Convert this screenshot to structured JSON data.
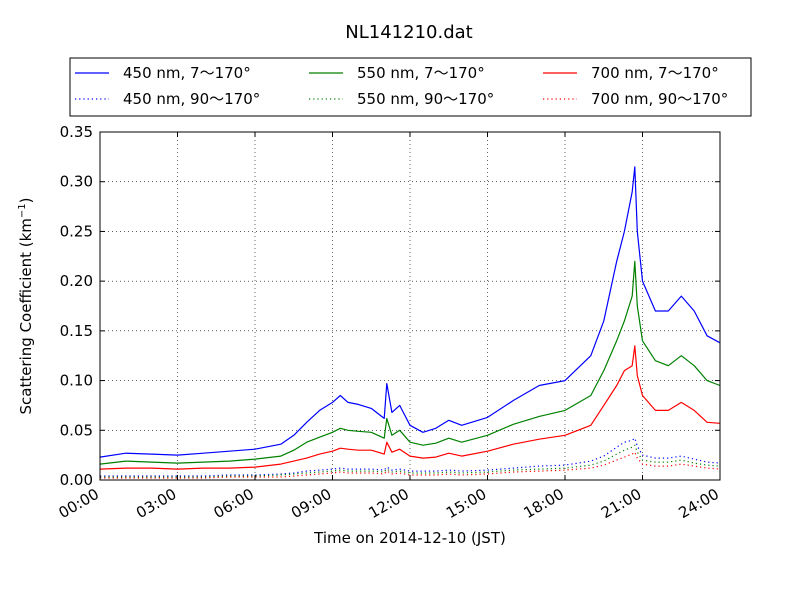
{
  "chart_data": {
    "type": "line",
    "title": "NL141210.dat",
    "xlabel": "Time on 2014-12-10 (JST)",
    "ylabel": "Scattering Coefficient (km",
    "ylabel_sup": "−1",
    "ylabel_close": ")",
    "xlim": [
      0,
      24
    ],
    "ylim": [
      0,
      0.35
    ],
    "grid": true,
    "legend_position": "top",
    "x_ticks": [
      0,
      3,
      6,
      9,
      12,
      15,
      18,
      21,
      24
    ],
    "x_tick_labels": [
      "00:00",
      "03:00",
      "06:00",
      "09:00",
      "12:00",
      "15:00",
      "18:00",
      "21:00",
      "24:00"
    ],
    "y_ticks": [
      0,
      0.05,
      0.1,
      0.15,
      0.2,
      0.25,
      0.3,
      0.35
    ],
    "y_tick_labels": [
      "0.00",
      "0.05",
      "0.10",
      "0.15",
      "0.20",
      "0.25",
      "0.30",
      "0.35"
    ],
    "x": [
      0,
      1,
      2,
      3,
      4,
      5,
      6,
      7,
      7.5,
      8,
      8.5,
      9,
      9.3,
      9.6,
      10,
      10.5,
      11,
      11.1,
      11.3,
      11.6,
      12,
      12.5,
      13,
      13.5,
      14,
      15,
      16,
      17,
      18,
      19,
      19.5,
      20,
      20.3,
      20.6,
      20.7,
      20.8,
      21,
      21.5,
      22,
      22.5,
      23,
      23.5,
      24
    ],
    "series": [
      {
        "name": "450 nm, 7～170°",
        "color": "#0000ff",
        "dash": "solid",
        "values": [
          0.023,
          0.027,
          0.026,
          0.025,
          0.027,
          0.029,
          0.031,
          0.036,
          0.045,
          0.058,
          0.07,
          0.078,
          0.085,
          0.078,
          0.076,
          0.072,
          0.062,
          0.097,
          0.068,
          0.075,
          0.055,
          0.048,
          0.052,
          0.06,
          0.055,
          0.063,
          0.08,
          0.095,
          0.1,
          0.125,
          0.16,
          0.22,
          0.25,
          0.29,
          0.315,
          0.25,
          0.2,
          0.17,
          0.17,
          0.185,
          0.17,
          0.145,
          0.138
        ]
      },
      {
        "name": "450 nm, 90～170°",
        "color": "#0000ff",
        "dash": "dotted",
        "values": [
          0.004,
          0.004,
          0.004,
          0.004,
          0.004,
          0.005,
          0.005,
          0.006,
          0.007,
          0.009,
          0.01,
          0.011,
          0.012,
          0.011,
          0.011,
          0.011,
          0.01,
          0.013,
          0.01,
          0.011,
          0.009,
          0.009,
          0.009,
          0.01,
          0.009,
          0.01,
          0.012,
          0.014,
          0.015,
          0.019,
          0.024,
          0.033,
          0.038,
          0.04,
          0.042,
          0.034,
          0.025,
          0.022,
          0.022,
          0.024,
          0.021,
          0.018,
          0.017
        ]
      },
      {
        "name": "550 nm, 7～170°",
        "color": "#008000",
        "dash": "solid",
        "values": [
          0.016,
          0.019,
          0.018,
          0.017,
          0.018,
          0.019,
          0.021,
          0.024,
          0.03,
          0.038,
          0.043,
          0.048,
          0.052,
          0.05,
          0.049,
          0.048,
          0.042,
          0.062,
          0.045,
          0.05,
          0.038,
          0.035,
          0.037,
          0.042,
          0.038,
          0.045,
          0.056,
          0.064,
          0.07,
          0.085,
          0.11,
          0.14,
          0.16,
          0.185,
          0.22,
          0.175,
          0.14,
          0.12,
          0.115,
          0.125,
          0.115,
          0.1,
          0.095
        ]
      },
      {
        "name": "550 nm, 90～170°",
        "color": "#008000",
        "dash": "dotted",
        "values": [
          0.003,
          0.003,
          0.003,
          0.003,
          0.003,
          0.004,
          0.004,
          0.005,
          0.006,
          0.007,
          0.008,
          0.009,
          0.01,
          0.009,
          0.009,
          0.009,
          0.008,
          0.011,
          0.008,
          0.009,
          0.007,
          0.007,
          0.007,
          0.008,
          0.007,
          0.008,
          0.01,
          0.011,
          0.012,
          0.015,
          0.019,
          0.026,
          0.03,
          0.033,
          0.035,
          0.028,
          0.02,
          0.018,
          0.018,
          0.02,
          0.017,
          0.015,
          0.014
        ]
      },
      {
        "name": "700 nm, 7～170°",
        "color": "#ff0000",
        "dash": "solid",
        "values": [
          0.011,
          0.012,
          0.012,
          0.011,
          0.012,
          0.012,
          0.013,
          0.016,
          0.019,
          0.022,
          0.026,
          0.029,
          0.032,
          0.031,
          0.03,
          0.03,
          0.026,
          0.038,
          0.028,
          0.031,
          0.024,
          0.022,
          0.023,
          0.027,
          0.024,
          0.029,
          0.036,
          0.041,
          0.045,
          0.055,
          0.075,
          0.095,
          0.11,
          0.115,
          0.135,
          0.105,
          0.085,
          0.07,
          0.07,
          0.078,
          0.07,
          0.058,
          0.057
        ]
      },
      {
        "name": "700 nm, 90～170°",
        "color": "#ff0000",
        "dash": "dotted",
        "values": [
          0.002,
          0.002,
          0.002,
          0.002,
          0.002,
          0.003,
          0.003,
          0.003,
          0.004,
          0.005,
          0.006,
          0.007,
          0.008,
          0.007,
          0.007,
          0.007,
          0.006,
          0.009,
          0.006,
          0.007,
          0.005,
          0.005,
          0.005,
          0.006,
          0.005,
          0.006,
          0.008,
          0.009,
          0.01,
          0.012,
          0.015,
          0.02,
          0.023,
          0.026,
          0.028,
          0.022,
          0.016,
          0.014,
          0.014,
          0.016,
          0.014,
          0.012,
          0.011
        ]
      }
    ]
  }
}
